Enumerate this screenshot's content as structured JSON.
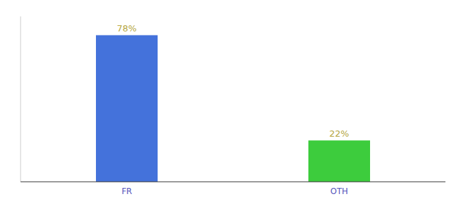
{
  "chart_data": {
    "type": "bar",
    "categories": [
      "FR",
      "OTH"
    ],
    "values": [
      78,
      22
    ],
    "value_labels": [
      "78%",
      "22%"
    ],
    "colors": [
      "#4472db",
      "#3dcc3d"
    ],
    "ylim": [
      0,
      88
    ],
    "data_labels": true,
    "tick_labels": "x",
    "grid": false
  }
}
